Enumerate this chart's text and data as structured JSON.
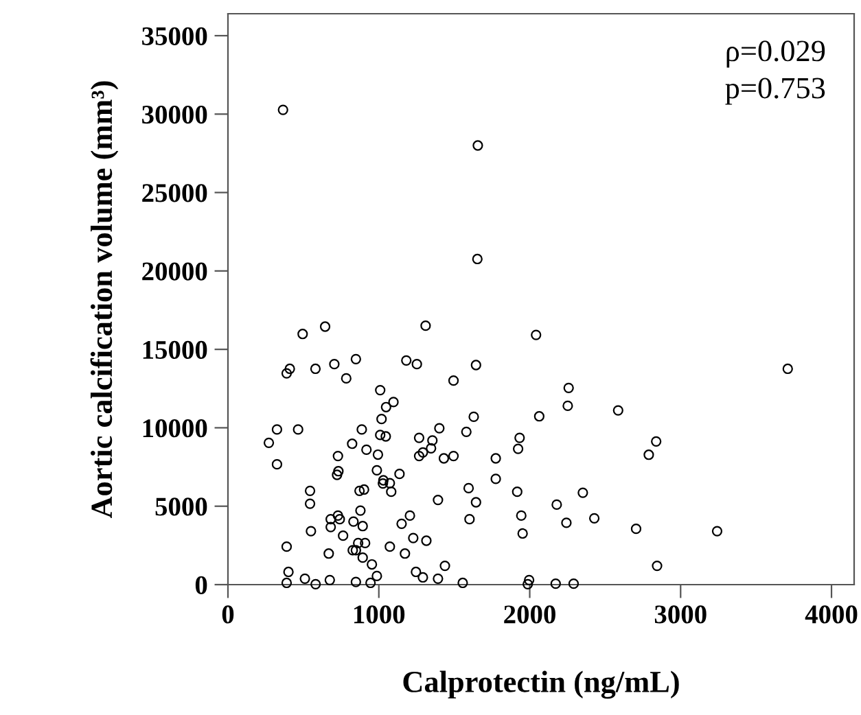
{
  "chart_data": {
    "type": "scatter",
    "xlabel": "Calprotectin (ng/mL)",
    "ylabel": "Aortic calcification volume (mm³)",
    "annotations": [
      "ρ=0.029",
      "p=0.753"
    ],
    "xlim": [
      0,
      4150
    ],
    "ylim": [
      0,
      36400
    ],
    "xticks": [
      0,
      1000,
      2000,
      3000,
      4000
    ],
    "yticks": [
      0,
      5000,
      10000,
      15000,
      20000,
      25000,
      30000,
      35000
    ],
    "grid": false,
    "legend": false,
    "marker": "circle",
    "series": [
      {
        "color": "#000000",
        "x": [
          365,
          1656,
          1653,
          495,
          644,
          1310,
          2042,
          2063,
          848,
          1182,
          1252,
          1644,
          705,
          580,
          410,
          389,
          784,
          1495,
          1009,
          1097,
          1048,
          1629,
          1018,
          325,
          465,
          887,
          1401,
          1580,
          271,
          1009,
          1046,
          1267,
          1355,
          1933,
          823,
          918,
          1292,
          1267,
          1346,
          994,
          729,
          1431,
          1495,
          1923,
          1775,
          325,
          987,
          732,
          723,
          1137,
          1030,
          1027,
          1073,
          1082,
          872,
          902,
          1595,
          1775,
          1917,
          544,
          544,
          1392,
          1644,
          878,
          1944,
          1601,
          729,
          741,
          681,
          1206,
          832,
          1151,
          681,
          893,
          550,
          763,
          1228,
          1315,
          1953,
          389,
          863,
          909,
          1073,
          827,
          848,
          668,
          1173,
          893,
          954,
          1438,
          401,
          1246,
          987,
          510,
          675,
          1292,
          1392,
          389,
          581,
          848,
          945,
          1556,
          1996,
          1987,
          3710,
          2258,
          2252,
          2586,
          2838,
          2789,
          2352,
          2179,
          2243,
          2428,
          2705,
          3242,
          2844,
          2172,
          2291
        ],
        "values": [
          30270,
          28000,
          20760,
          15980,
          16450,
          16510,
          15920,
          10730,
          14380,
          14290,
          14060,
          14000,
          14060,
          13760,
          13760,
          13470,
          13150,
          13010,
          12400,
          11640,
          11320,
          10700,
          10560,
          9890,
          9890,
          9890,
          9970,
          9740,
          9040,
          9540,
          9450,
          9360,
          9190,
          9360,
          8980,
          8600,
          8430,
          8200,
          8690,
          8290,
          8200,
          8050,
          8200,
          8660,
          8050,
          7670,
          7290,
          7230,
          7000,
          7060,
          6650,
          6450,
          6470,
          5920,
          5980,
          6060,
          6150,
          6740,
          5920,
          5980,
          5160,
          5400,
          5250,
          4720,
          4400,
          4170,
          4400,
          4170,
          4170,
          4400,
          4020,
          3880,
          3670,
          3730,
          3410,
          3120,
          2970,
          2800,
          3260,
          2420,
          2650,
          2650,
          2420,
          2190,
          2190,
          1980,
          1980,
          1720,
          1290,
          1200,
          810,
          810,
          550,
          380,
          290,
          460,
          380,
          110,
          30,
          170,
          110,
          110,
          290,
          30,
          13760,
          12540,
          11400,
          11110,
          9130,
          8280,
          5860,
          5100,
          3940,
          4230,
          3560,
          3410,
          1200,
          60,
          60
        ]
      }
    ]
  }
}
